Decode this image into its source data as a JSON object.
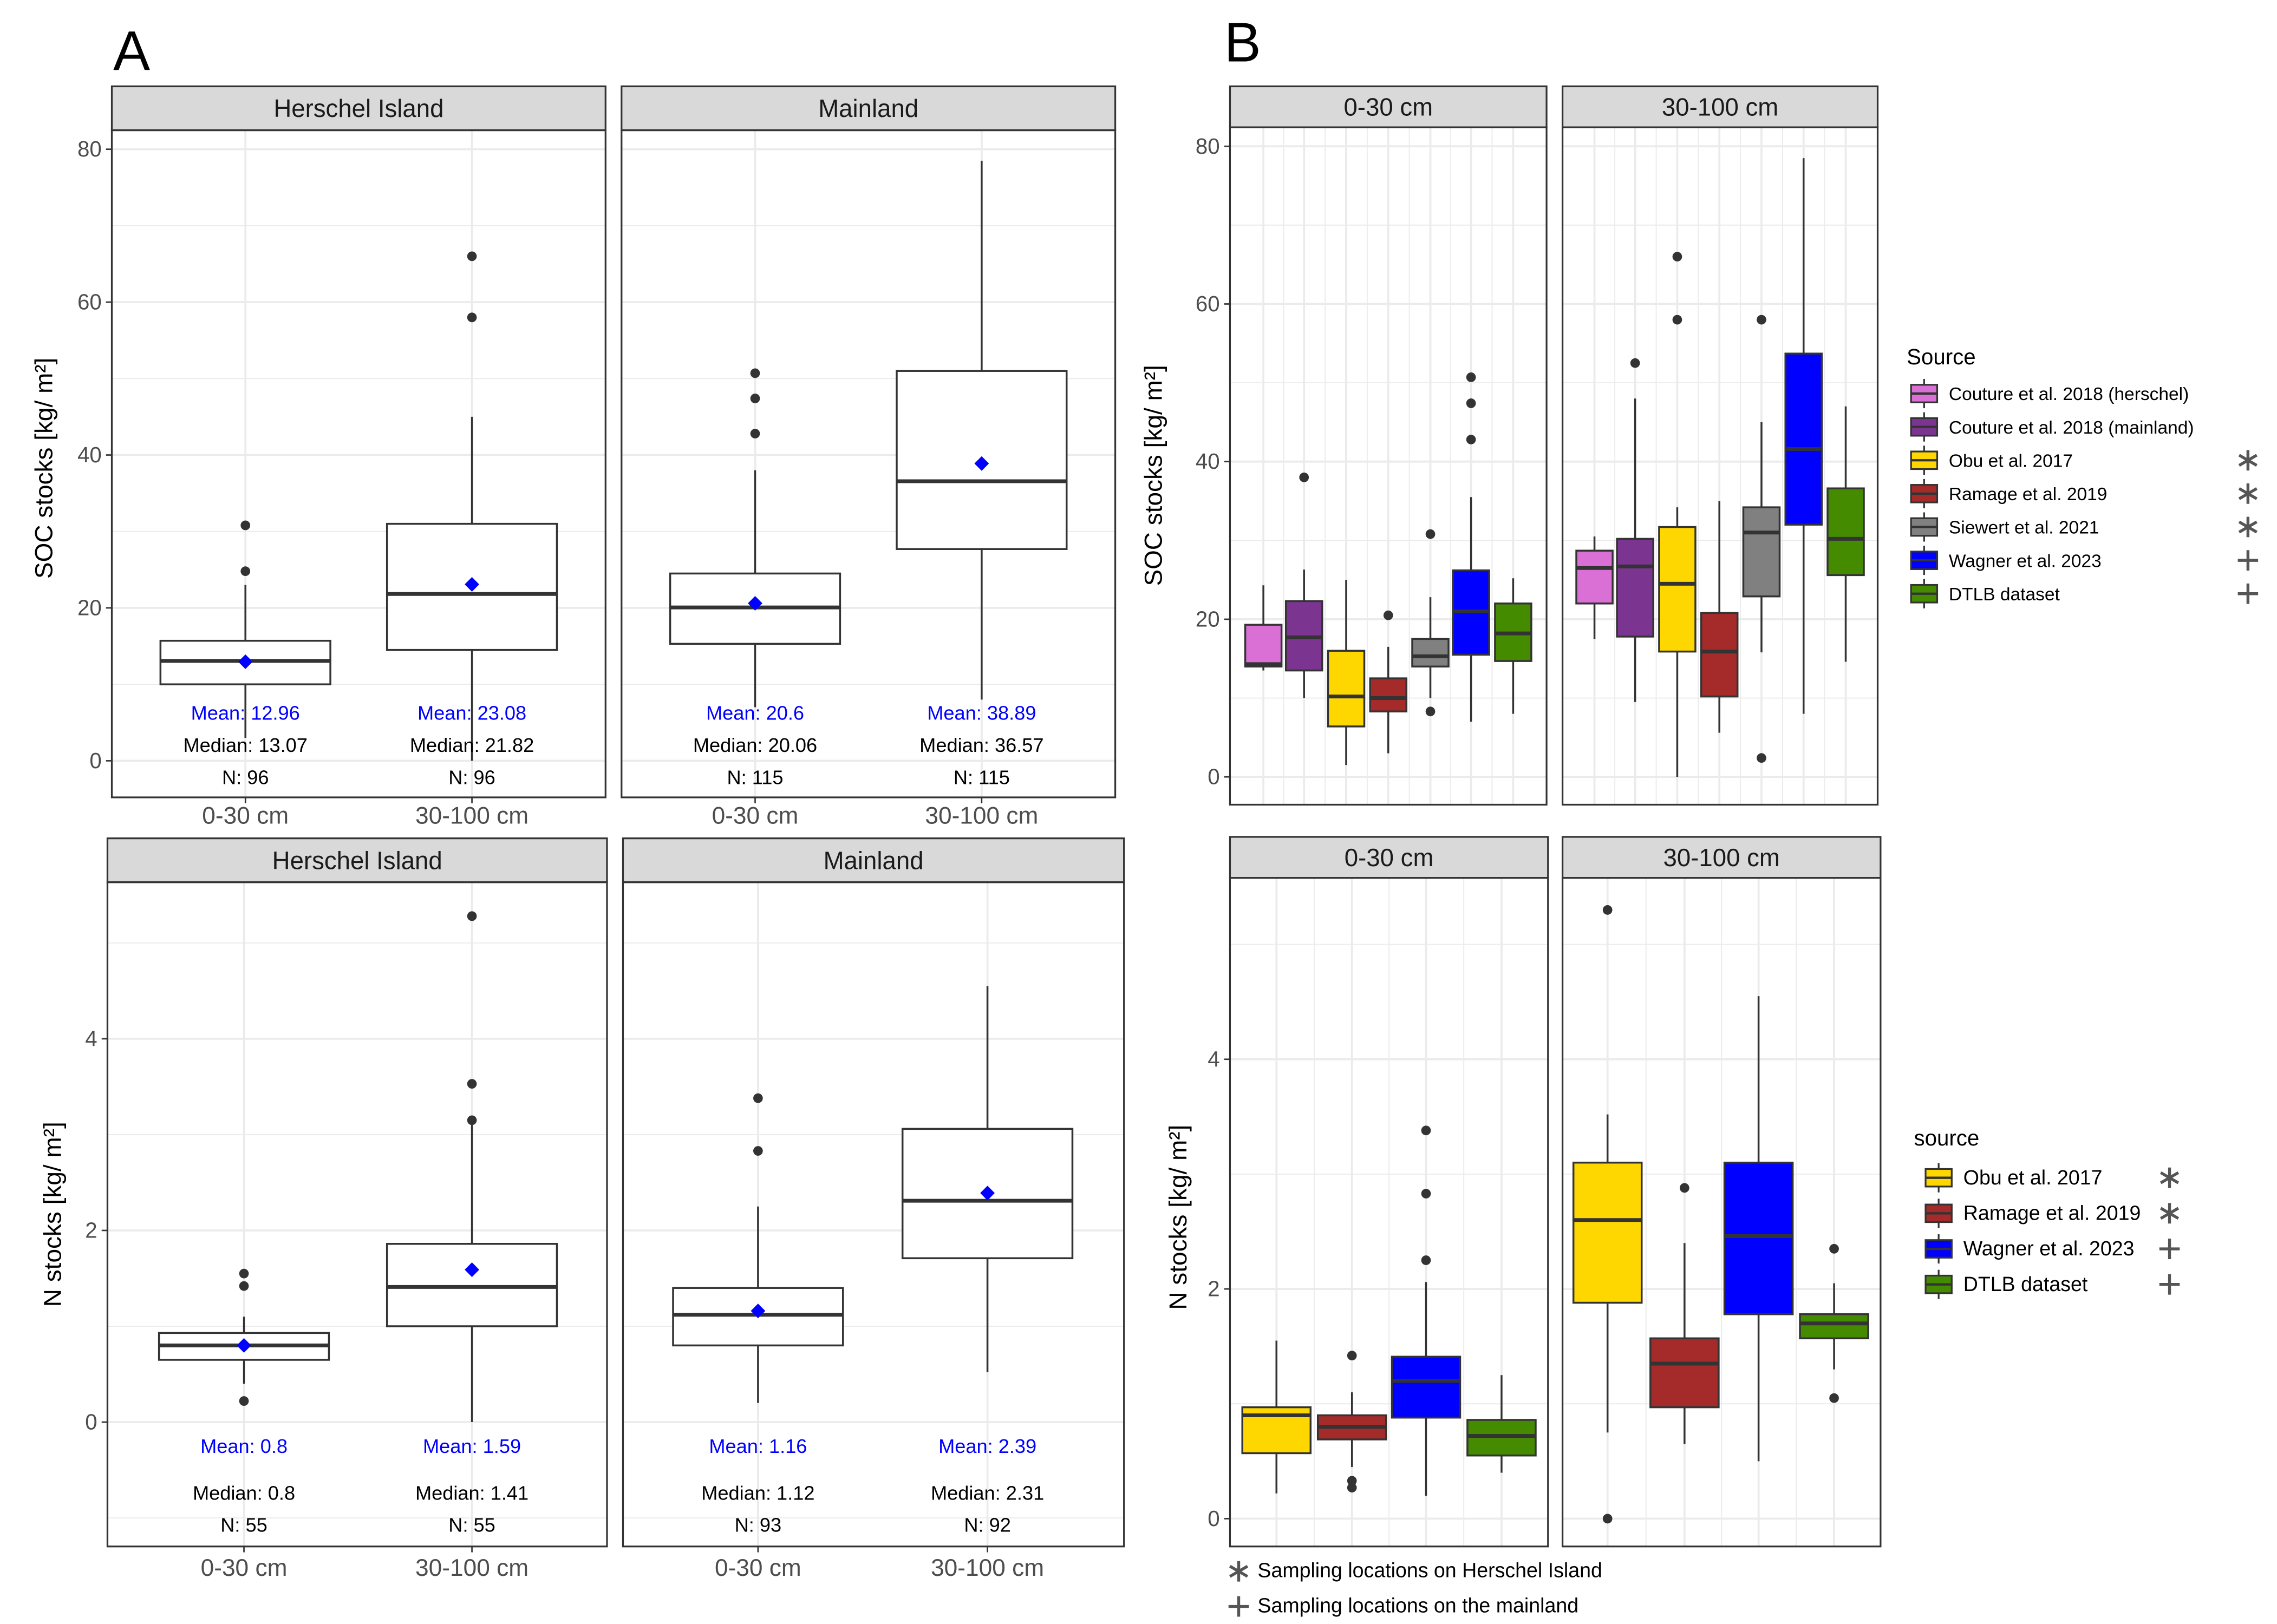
{
  "panel_labels": [
    "A",
    "B"
  ],
  "chart_data": [
    {
      "type": "box",
      "panel": "A",
      "ylabel": "SOC stocks [kg/ m²]",
      "yticks": [
        0,
        20,
        40,
        60,
        80
      ],
      "grid": true,
      "facets": [
        {
          "title": "Herschel Island",
          "categories": [
            "0-30 cm",
            "30-100 cm"
          ],
          "boxes": [
            {
              "category": "0-30 cm",
              "whisker_low": 3,
              "q1": 10,
              "median": 13.07,
              "q3": 15.7,
              "whisker_high": 23,
              "outliers": [
                24.8,
                30.8
              ],
              "mean": 12.96,
              "mean_label": "Mean: 12.96",
              "median_label": "Median: 13.07",
              "n_label": "N: 96"
            },
            {
              "category": "30-100 cm",
              "whisker_low": 0,
              "q1": 14.5,
              "median": 21.82,
              "q3": 31,
              "whisker_high": 45,
              "outliers": [
                58,
                66
              ],
              "mean": 23.08,
              "mean_label": "Mean: 23.08",
              "median_label": "Median: 21.82",
              "n_label": "N: 96"
            }
          ]
        },
        {
          "title": "Mainland",
          "categories": [
            "0-30 cm",
            "30-100 cm"
          ],
          "boxes": [
            {
              "category": "0-30 cm",
              "whisker_low": 7,
              "q1": 15.3,
              "median": 20.06,
              "q3": 24.5,
              "whisker_high": 38,
              "outliers": [
                42.8,
                47.4,
                50.7
              ],
              "mean": 20.6,
              "mean_label": "Mean: 20.6",
              "median_label": "Median: 20.06",
              "n_label": "N: 115"
            },
            {
              "category": "30-100 cm",
              "whisker_low": 8,
              "q1": 27.7,
              "median": 36.57,
              "q3": 51,
              "whisker_high": 78.5,
              "outliers": [],
              "mean": 38.89,
              "mean_label": "Mean: 38.89",
              "median_label": "Median: 36.57",
              "n_label": "N: 115"
            }
          ]
        }
      ]
    },
    {
      "type": "box",
      "panel": "A",
      "ylabel": "N stocks [kg/ m²]",
      "yticks": [
        0,
        2,
        4
      ],
      "grid": true,
      "facets": [
        {
          "title": "Herschel Island",
          "categories": [
            "0-30 cm",
            "30-100 cm"
          ],
          "boxes": [
            {
              "category": "0-30 cm",
              "whisker_low": 0.4,
              "q1": 0.65,
              "median": 0.8,
              "q3": 0.93,
              "whisker_high": 1.1,
              "outliers": [
                0.22,
                1.42,
                1.55
              ],
              "mean": 0.8,
              "mean_label": "Mean: 0.8",
              "median_label": "Median: 0.8",
              "n_label": "N: 55"
            },
            {
              "category": "30-100 cm",
              "whisker_low": 0,
              "q1": 1.0,
              "median": 1.41,
              "q3": 1.86,
              "whisker_high": 3.1,
              "outliers": [
                3.15,
                3.53,
                5.28
              ],
              "mean": 1.59,
              "mean_label": "Mean: 1.59",
              "median_label": "Median: 1.41",
              "n_label": "N: 55"
            }
          ]
        },
        {
          "title": "Mainland",
          "categories": [
            "0-30 cm",
            "30-100 cm"
          ],
          "boxes": [
            {
              "category": "0-30 cm",
              "whisker_low": 0.2,
              "q1": 0.8,
              "median": 1.12,
              "q3": 1.4,
              "whisker_high": 2.25,
              "outliers": [
                2.83,
                3.38
              ],
              "mean": 1.16,
              "mean_label": "Mean: 1.16",
              "median_label": "Median: 1.12",
              "n_label": "N: 93"
            },
            {
              "category": "30-100 cm",
              "whisker_low": 0.52,
              "q1": 1.71,
              "median": 2.31,
              "q3": 3.06,
              "whisker_high": 4.55,
              "outliers": [],
              "mean": 2.39,
              "mean_label": "Mean: 2.39",
              "median_label": "Median: 2.31",
              "n_label": "N: 92"
            }
          ]
        }
      ]
    },
    {
      "type": "box",
      "panel": "B",
      "ylabel": "SOC stocks [kg/ m²]",
      "yticks": [
        0,
        20,
        40,
        60,
        80
      ],
      "grid": true,
      "facets": [
        {
          "title": "0-30 cm",
          "boxes": [
            {
              "source": "Couture et al. 2018 (herschel)",
              "color": "#DA70D6",
              "whisker_low": 13.5,
              "q1": 14,
              "median": 14.3,
              "q3": 19.3,
              "whisker_high": 24.3,
              "outliers": []
            },
            {
              "source": "Couture et al. 2018 (mainland)",
              "color": "#7B3590",
              "whisker_low": 10,
              "q1": 13.5,
              "median": 17.7,
              "q3": 22.3,
              "whisker_high": 26.3,
              "outliers": [
                38
              ]
            },
            {
              "source": "Obu et al. 2017",
              "color": "#FFD700",
              "whisker_low": 1.5,
              "q1": 6.4,
              "median": 10.2,
              "q3": 16,
              "whisker_high": 25,
              "outliers": []
            },
            {
              "source": "Ramage et al. 2019",
              "color": "#A52A2A",
              "whisker_low": 3,
              "q1": 8.3,
              "median": 10,
              "q3": 12.5,
              "whisker_high": 16.5,
              "outliers": [
                20.5
              ]
            },
            {
              "source": "Siewert et al. 2021",
              "color": "#808080",
              "whisker_low": 10,
              "q1": 14,
              "median": 15.3,
              "q3": 17.5,
              "whisker_high": 22.8,
              "outliers": [
                8.3,
                30.8
              ]
            },
            {
              "source": "Wagner et al. 2023",
              "color": "#0000FF",
              "whisker_low": 7,
              "q1": 15.5,
              "median": 21,
              "q3": 26.2,
              "whisker_high": 35.5,
              "outliers": [
                42.8,
                47.4,
                50.7
              ]
            },
            {
              "source": "DTLB dataset",
              "color": "#458B00",
              "whisker_low": 8,
              "q1": 14.7,
              "median": 18.2,
              "q3": 22,
              "whisker_high": 25.2,
              "outliers": []
            }
          ]
        },
        {
          "title": "30-100 cm",
          "boxes": [
            {
              "source": "Couture et al. 2018 (herschel)",
              "color": "#DA70D6",
              "whisker_low": 17.5,
              "q1": 22,
              "median": 26.5,
              "q3": 28.7,
              "whisker_high": 30.5,
              "outliers": []
            },
            {
              "source": "Couture et al. 2018 (mainland)",
              "color": "#7B3590",
              "whisker_low": 9.5,
              "q1": 17.8,
              "median": 26.7,
              "q3": 30.2,
              "whisker_high": 48,
              "outliers": [
                52.5
              ]
            },
            {
              "source": "Obu et al. 2017",
              "color": "#FFD700",
              "whisker_low": 0,
              "q1": 15.9,
              "median": 24.5,
              "q3": 31.7,
              "whisker_high": 34.2,
              "outliers": [
                58,
                66
              ]
            },
            {
              "source": "Ramage et al. 2019",
              "color": "#A52A2A",
              "whisker_low": 5.6,
              "q1": 10.2,
              "median": 15.9,
              "q3": 20.8,
              "whisker_high": 35,
              "outliers": []
            },
            {
              "source": "Siewert et al. 2021",
              "color": "#808080",
              "whisker_low": 15.8,
              "q1": 22.9,
              "median": 31,
              "q3": 34.2,
              "whisker_high": 45,
              "outliers": [
                2.4,
                58
              ]
            },
            {
              "source": "Wagner et al. 2023",
              "color": "#0000FF",
              "whisker_low": 8,
              "q1": 32,
              "median": 41.6,
              "q3": 53.7,
              "whisker_high": 78.5,
              "outliers": []
            },
            {
              "source": "DTLB dataset",
              "color": "#458B00",
              "whisker_low": 14.6,
              "q1": 25.6,
              "median": 30.2,
              "q3": 36.6,
              "whisker_high": 47,
              "outliers": []
            }
          ]
        }
      ]
    },
    {
      "type": "box",
      "panel": "B",
      "ylabel": "N stocks [kg/ m²]",
      "yticks": [
        0,
        2,
        4
      ],
      "grid": true,
      "facets": [
        {
          "title": "0-30 cm",
          "boxes": [
            {
              "source": "Obu et al. 2017",
              "color": "#FFD700",
              "whisker_low": 0.22,
              "q1": 0.57,
              "median": 0.9,
              "q3": 0.97,
              "whisker_high": 1.55,
              "outliers": []
            },
            {
              "source": "Ramage et al. 2019",
              "color": "#A52A2A",
              "whisker_low": 0.45,
              "q1": 0.69,
              "median": 0.8,
              "q3": 0.9,
              "whisker_high": 1.1,
              "outliers": [
                0.27,
                0.33,
                1.42
              ]
            },
            {
              "source": "Wagner et al. 2023",
              "color": "#0000FF",
              "whisker_low": 0.2,
              "q1": 0.88,
              "median": 1.2,
              "q3": 1.41,
              "whisker_high": 2.06,
              "outliers": [
                2.25,
                2.83,
                3.38
              ]
            },
            {
              "source": "DTLB dataset",
              "color": "#458B00",
              "whisker_low": 0.4,
              "q1": 0.55,
              "median": 0.72,
              "q3": 0.86,
              "whisker_high": 1.25,
              "outliers": []
            }
          ]
        },
        {
          "title": "30-100 cm",
          "boxes": [
            {
              "source": "Obu et al. 2017",
              "color": "#FFD700",
              "whisker_low": 0.75,
              "q1": 1.88,
              "median": 2.6,
              "q3": 3.1,
              "whisker_high": 3.52,
              "outliers": [
                0,
                5.3
              ]
            },
            {
              "source": "Ramage et al. 2019",
              "color": "#A52A2A",
              "whisker_low": 0.65,
              "q1": 0.97,
              "median": 1.35,
              "q3": 1.57,
              "whisker_high": 2.4,
              "outliers": [
                2.88
              ]
            },
            {
              "source": "Wagner et al. 2023",
              "color": "#0000FF",
              "whisker_low": 0.5,
              "q1": 1.78,
              "median": 2.46,
              "q3": 3.1,
              "whisker_high": 4.55,
              "outliers": []
            },
            {
              "source": "DTLB dataset",
              "color": "#458B00",
              "whisker_low": 1.3,
              "q1": 1.57,
              "median": 1.7,
              "q3": 1.78,
              "whisker_high": 2.05,
              "outliers": [
                1.05,
                2.35
              ]
            }
          ]
        }
      ]
    }
  ],
  "legends": [
    {
      "title": "Source",
      "items": [
        {
          "label": "Couture et al. 2018 (herschel)",
          "color": "#DA70D6",
          "marker": ""
        },
        {
          "label": "Couture et al. 2018 (mainland)",
          "color": "#7B3590",
          "marker": ""
        },
        {
          "label": "Obu et al. 2017",
          "color": "#FFD700",
          "marker": "*"
        },
        {
          "label": "Ramage et al. 2019",
          "color": "#A52A2A",
          "marker": "*"
        },
        {
          "label": "Siewert et al. 2021",
          "color": "#808080",
          "marker": "*"
        },
        {
          "label": "Wagner et al. 2023",
          "color": "#0000FF",
          "marker": "+"
        },
        {
          "label": "DTLB dataset",
          "color": "#458B00",
          "marker": "+"
        }
      ]
    },
    {
      "title": "source",
      "items": [
        {
          "label": "Obu et al. 2017",
          "color": "#FFD700",
          "marker": "*"
        },
        {
          "label": "Ramage et al. 2019",
          "color": "#A52A2A",
          "marker": "*"
        },
        {
          "label": "Wagner et al. 2023",
          "color": "#0000FF",
          "marker": "+"
        },
        {
          "label": "DTLB dataset",
          "color": "#458B00",
          "marker": "+"
        }
      ]
    }
  ],
  "footnotes": [
    {
      "marker": "*",
      "text": "Sampling locations on Herschel Island"
    },
    {
      "marker": "+",
      "text": "Sampling locations on the mainland"
    }
  ],
  "colors": {
    "mean_marker": "#0000FF",
    "strip_fill": "#D9D9D9",
    "grid": "#EBEBEB",
    "box_line": "#333333"
  }
}
